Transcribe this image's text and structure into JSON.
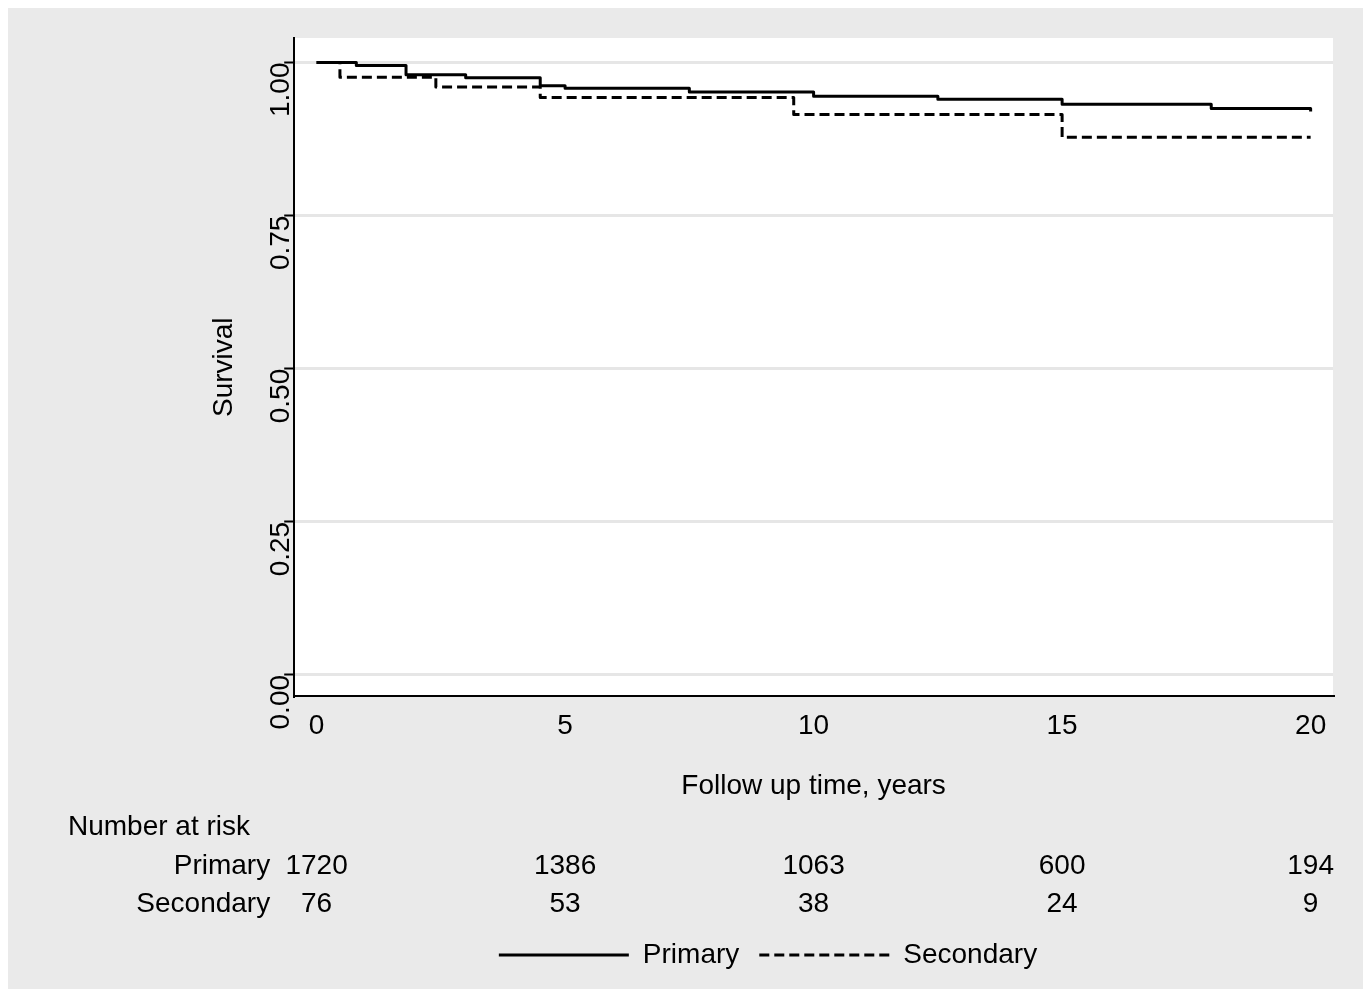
{
  "chart_data": {
    "type": "step",
    "xlabel": "Follow up time, years",
    "ylabel": "Survival",
    "xlim": [
      -0.45,
      20.45
    ],
    "xticks": [
      0,
      5,
      10,
      15,
      20
    ],
    "ylim": [
      -0.035,
      1.04
    ],
    "yticks": [
      {
        "value": 0,
        "label": "0.00"
      },
      {
        "value": 0.25,
        "label": "0.25"
      },
      {
        "value": 0.5,
        "label": "0.50"
      },
      {
        "value": 0.75,
        "label": "0.75"
      },
      {
        "value": 1,
        "label": "1.00"
      }
    ],
    "grid": "y",
    "legend": "bottom",
    "marker": "none",
    "series": [
      {
        "name": "Primary",
        "color": "#000000",
        "line_style": "solid",
        "x": [
          0,
          0.8,
          1.8,
          3,
          4.5,
          5,
          7.5,
          10,
          12.5,
          15,
          18,
          20
        ],
        "values": [
          1,
          0.995,
          0.98,
          0.975,
          0.962,
          0.958,
          0.952,
          0.945,
          0.94,
          0.932,
          0.925,
          0.92
        ]
      },
      {
        "name": "Secondary",
        "color": "#000000",
        "line_style": "dashed",
        "x": [
          0,
          0.47,
          2.4,
          4.5,
          9.6,
          15,
          20
        ],
        "values": [
          1,
          0.976,
          0.96,
          0.943,
          0.915,
          0.878,
          0.878
        ]
      }
    ],
    "annotations": [
      "Number at risk",
      "Primary",
      "1720",
      "1386",
      "1063",
      "600",
      "194",
      "Secondary",
      "76",
      "53",
      "38",
      "24",
      "9"
    ]
  }
}
